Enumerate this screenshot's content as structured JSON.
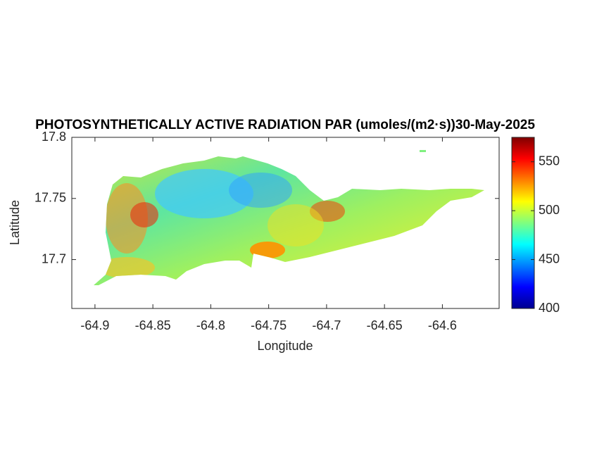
{
  "chart_data": {
    "type": "map",
    "title": "PHOTOSYNTHETICALLY ACTIVE RADIATION PAR (umoles/(m2·s))30-May-2025",
    "x_label": "Longitude",
    "y_label": "Latitude",
    "xlim": [
      -64.92,
      -64.551
    ],
    "xticks": [
      -64.9,
      -64.85,
      -64.8,
      -64.75,
      -64.7,
      -64.65,
      -64.6
    ],
    "ylim": [
      17.66,
      17.8
    ],
    "yticks": [
      17.7,
      17.75,
      17.8
    ],
    "colormap": "jet",
    "clim": [
      400,
      575
    ],
    "cticks": [
      400,
      450,
      500,
      550
    ]
  }
}
